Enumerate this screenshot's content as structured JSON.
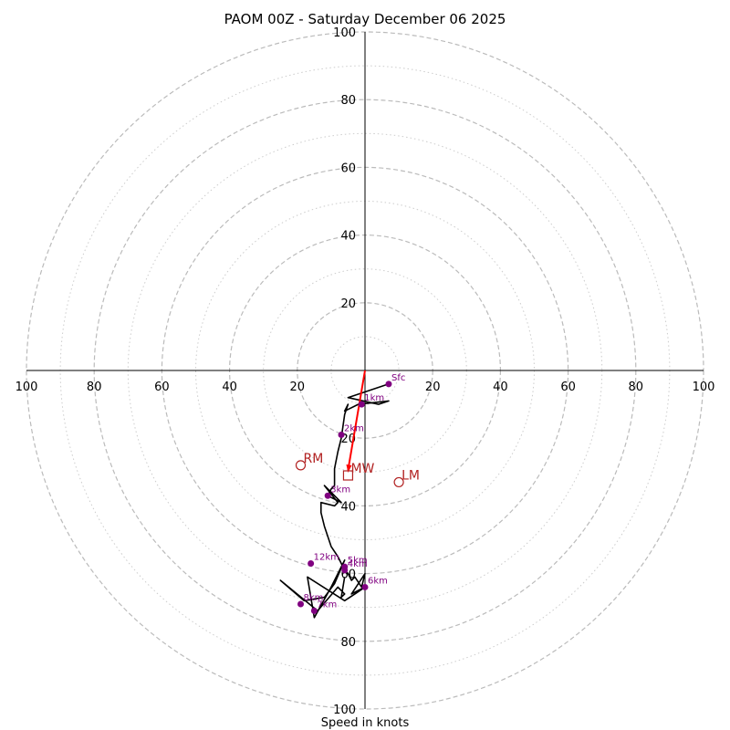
{
  "chart_data": {
    "type": "hodograph",
    "title": "PAOM 00Z - Saturday December 06 2025",
    "xlabel": "Speed in knots",
    "max_speed": 100,
    "ring_major": [
      20,
      40,
      60,
      80,
      100
    ],
    "ring_minor": [
      10,
      30,
      50,
      70,
      90
    ],
    "axis_ticks": {
      "left": [
        "100",
        "80",
        "60",
        "40",
        "20"
      ],
      "right": [
        "20",
        "40",
        "60",
        "80",
        "100"
      ],
      "up": [
        "20",
        "40",
        "60",
        "80",
        "100"
      ],
      "down": [
        "20",
        "40",
        "60",
        "80",
        "100"
      ]
    },
    "trace_uv": [
      [
        7,
        -4
      ],
      [
        -5,
        -8
      ],
      [
        4,
        -10
      ],
      [
        7,
        -9
      ],
      [
        -2,
        -10
      ],
      [
        -6,
        -12
      ],
      [
        -5,
        -10
      ],
      [
        -6,
        -13
      ],
      [
        -7,
        -20
      ],
      [
        -8,
        -24
      ],
      [
        -9,
        -29
      ],
      [
        -9,
        -34
      ],
      [
        -10,
        -35
      ],
      [
        -11,
        -37
      ],
      [
        -7,
        -39
      ],
      [
        -12,
        -34
      ],
      [
        -8,
        -39
      ],
      [
        -9,
        -40
      ],
      [
        -13,
        -39
      ],
      [
        -13,
        -42
      ],
      [
        -12,
        -46
      ],
      [
        -10,
        -52
      ],
      [
        -8,
        -55
      ],
      [
        -6,
        -59
      ],
      [
        -5,
        -60
      ],
      [
        -4,
        -62
      ],
      [
        -3,
        -61
      ],
      [
        -1,
        -64
      ],
      [
        0,
        -60
      ],
      [
        -4,
        -66
      ],
      [
        0,
        -64
      ],
      [
        -3,
        -66
      ],
      [
        -6,
        -68
      ],
      [
        -17,
        -61
      ],
      [
        -15,
        -73
      ],
      [
        -10,
        -64
      ],
      [
        -6,
        -56
      ],
      [
        -9,
        -63
      ],
      [
        -12,
        -67
      ],
      [
        -18,
        -68
      ],
      [
        -25,
        -62
      ],
      [
        -14,
        -71
      ],
      [
        -8,
        -64
      ],
      [
        -6,
        -66
      ],
      [
        -7,
        -67
      ],
      [
        -6,
        -61
      ]
    ],
    "heights": [
      {
        "label": "Sfc",
        "u": 7,
        "v": -4
      },
      {
        "label": "1km",
        "u": -1,
        "v": -10
      },
      {
        "label": "2km",
        "u": -7,
        "v": -19
      },
      {
        "label": "3km",
        "u": -11,
        "v": -37
      },
      {
        "label": "4km",
        "u": -6,
        "v": -59
      },
      {
        "label": "5km",
        "u": -6,
        "v": -58
      },
      {
        "label": "6km",
        "u": 0,
        "v": -64
      },
      {
        "label": "7km",
        "u": -15,
        "v": -71
      },
      {
        "label": "8km",
        "u": -19,
        "v": -69
      },
      {
        "label": "12km",
        "u": -16,
        "v": -57
      }
    ],
    "motion_vector": {
      "u": -5,
      "v": -31
    },
    "storm_motions": [
      {
        "label": "RM",
        "u": -19,
        "v": -28,
        "marker": "circle"
      },
      {
        "label": "LM",
        "u": 10,
        "v": -33,
        "marker": "circle"
      },
      {
        "label": "MW",
        "u": -5,
        "v": -31,
        "marker": "square"
      }
    ],
    "colors": {
      "trace": "#000000",
      "height_marker": "#800080",
      "motion": "#ff0000",
      "storm_label": "#b22222",
      "ring": "#bbbbbb",
      "axis": "#000000"
    }
  }
}
